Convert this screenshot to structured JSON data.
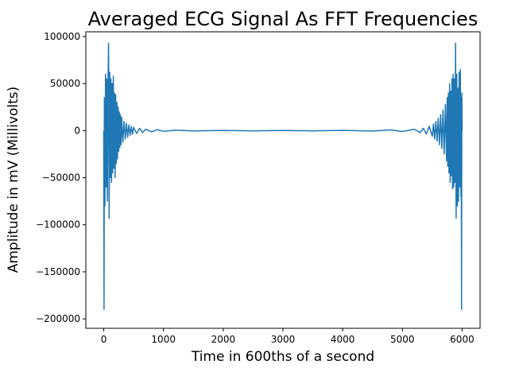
{
  "chart_data": {
    "type": "line",
    "title": "Averaged ECG Signal As FFT Frequencies",
    "xlabel": "Time in 600ths of a second",
    "ylabel": "Amplitude in mV (Millivolts)",
    "xlim": [
      -300,
      6300
    ],
    "ylim": [
      -210000,
      105000
    ],
    "x_ticks": [
      0,
      1000,
      2000,
      3000,
      4000,
      5000,
      6000
    ],
    "x_tick_labels": [
      "0",
      "1000",
      "2000",
      "3000",
      "4000",
      "5000",
      "6000"
    ],
    "y_ticks": [
      100000,
      50000,
      0,
      -50000,
      -100000,
      -150000,
      -200000
    ],
    "y_tick_labels": [
      "100000",
      "50000",
      "0",
      "−50000",
      "−100000",
      "−150000",
      "−200000"
    ],
    "grid": false,
    "series": [
      {
        "color": "#1f77b4",
        "x": [
          0,
          5,
          10,
          20,
          30,
          40,
          50,
          60,
          70,
          80,
          90,
          100,
          110,
          120,
          130,
          140,
          150,
          160,
          170,
          180,
          190,
          200,
          210,
          220,
          230,
          240,
          250,
          260,
          270,
          280,
          290,
          300,
          320,
          340,
          360,
          380,
          400,
          420,
          440,
          460,
          480,
          500,
          550,
          600,
          650,
          700,
          800,
          900,
          1000,
          1200,
          1500,
          2000,
          2500,
          3000,
          3500,
          4000,
          4500,
          4800,
          5000,
          5200,
          5300,
          5350,
          5400,
          5450,
          5500,
          5520,
          5540,
          5560,
          5580,
          5600,
          5620,
          5640,
          5660,
          5680,
          5700,
          5720,
          5740,
          5750,
          5760,
          5770,
          5780,
          5790,
          5800,
          5810,
          5820,
          5830,
          5840,
          5850,
          5860,
          5870,
          5880,
          5890,
          5900,
          5910,
          5920,
          5930,
          5940,
          5950,
          5960,
          5970,
          5980,
          5985,
          5990,
          5995,
          6000
        ],
        "y": [
          0,
          -190000,
          35000,
          -80000,
          60000,
          -60000,
          55000,
          -75000,
          45000,
          93000,
          -93000,
          62000,
          -50000,
          55000,
          -55000,
          50000,
          -45000,
          58000,
          -40000,
          40000,
          -50000,
          38000,
          -35000,
          30000,
          -30000,
          25000,
          -22000,
          20000,
          -18000,
          17000,
          -15000,
          14000,
          -12000,
          10000,
          -9000,
          8000,
          -7000,
          6000,
          -5000,
          4500,
          -4000,
          3500,
          -3000,
          2500,
          -2000,
          1500,
          -1200,
          1000,
          -800,
          500,
          -300,
          200,
          -200,
          200,
          -200,
          300,
          -500,
          800,
          -1000,
          1500,
          -2000,
          2500,
          -3500,
          4500,
          -6000,
          7000,
          -9000,
          10000,
          -11000,
          13000,
          -15000,
          17000,
          -19000,
          22000,
          -25000,
          28000,
          -32000,
          35000,
          -38000,
          40000,
          -45000,
          50000,
          -55000,
          42000,
          -48000,
          55000,
          -62000,
          60000,
          -60000,
          55000,
          -55000,
          93000,
          -93000,
          60000,
          -80000,
          45000,
          -75000,
          62000,
          -60000,
          65000,
          -70000,
          35000,
          -190000,
          40000,
          0
        ]
      }
    ]
  }
}
